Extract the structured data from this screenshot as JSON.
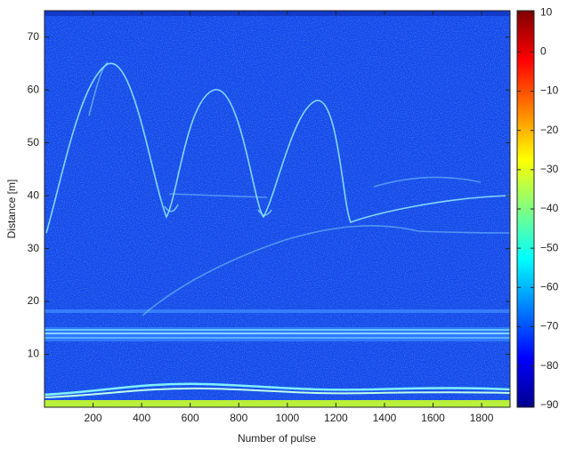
{
  "chart_data": {
    "type": "heatmap",
    "xlabel": "Number of pulse",
    "ylabel": "Distance [m]",
    "xlim": [
      0,
      1917
    ],
    "xticks": [
      200,
      400,
      600,
      800,
      1000,
      1200,
      1400,
      1600,
      1800
    ],
    "ylim": [
      0,
      75
    ],
    "yticks": [
      10,
      20,
      30,
      40,
      50,
      60,
      70
    ],
    "colormap": "jet",
    "clim": [
      -90.5,
      10.5
    ],
    "cticks": [
      10,
      0,
      {
        "value": -10,
        "label": "−10"
      },
      {
        "value": -20,
        "label": "−20"
      },
      {
        "value": -30,
        "label": "−30"
      },
      {
        "value": -40,
        "label": "−40"
      },
      {
        "value": -50,
        "label": "−50"
      },
      {
        "value": -60,
        "label": "−60"
      },
      {
        "value": -70,
        "label": "−70"
      },
      {
        "value": -80,
        "label": "−80"
      },
      {
        "value": -90,
        "label": "−90"
      }
    ]
  }
}
